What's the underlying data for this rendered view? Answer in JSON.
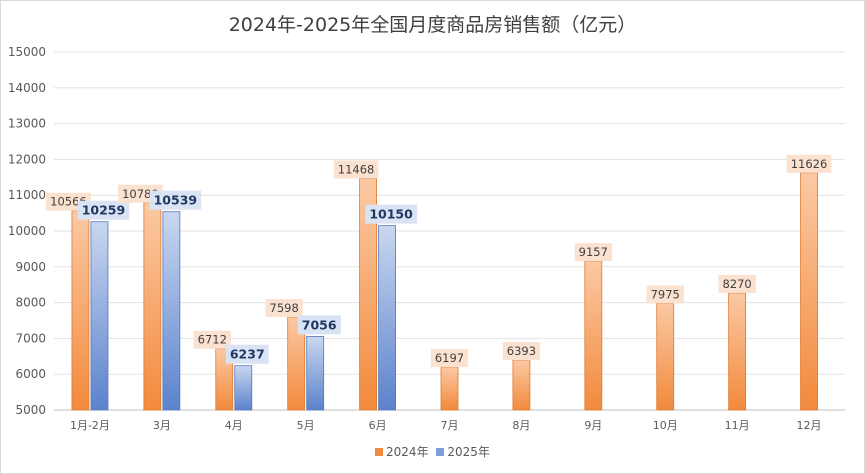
{
  "chart_data": {
    "type": "bar",
    "title": "2024年-2025年全国月度商品房销售额（亿元）",
    "xlabel": "",
    "ylabel": "",
    "ylim": [
      5000,
      15000
    ],
    "yticks": [
      5000,
      6000,
      7000,
      8000,
      9000,
      10000,
      11000,
      12000,
      13000,
      14000,
      15000
    ],
    "grid": true,
    "legend_position": "bottom",
    "categories": [
      "1月-2月",
      "3月",
      "4月",
      "5月",
      "6月",
      "7月",
      "8月",
      "9月",
      "10月",
      "11月",
      "12月"
    ],
    "series": [
      {
        "name": "2024年",
        "color": "#f4a36b",
        "values": [
          10566,
          10789,
          6712,
          7598,
          11468,
          6197,
          6393,
          9157,
          7975,
          8270,
          11626
        ]
      },
      {
        "name": "2025年",
        "color": "#8faadc",
        "values": [
          10259,
          10539,
          6237,
          7056,
          10150,
          null,
          null,
          null,
          null,
          null,
          null
        ]
      }
    ]
  }
}
